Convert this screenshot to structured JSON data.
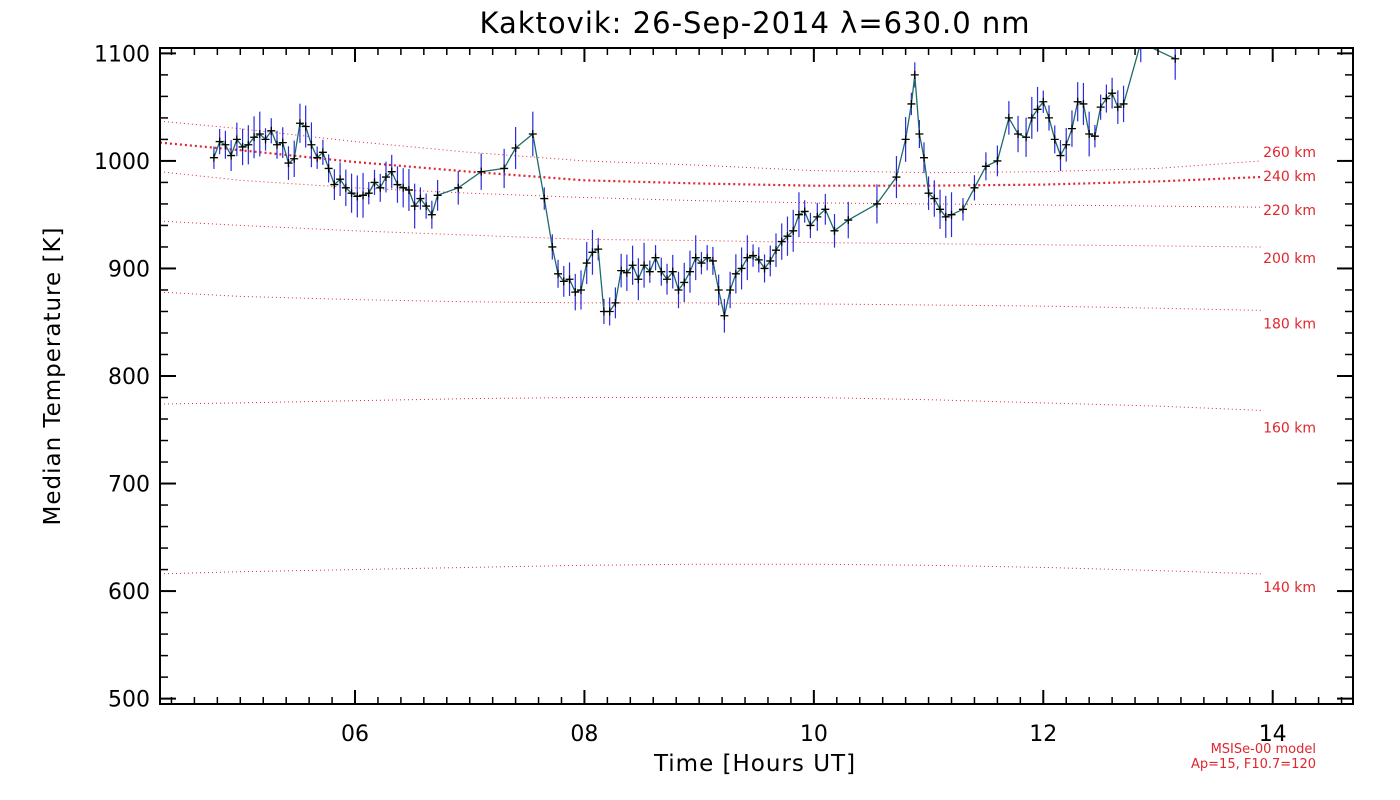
{
  "chart_data": {
    "type": "line",
    "title": "Kaktovik: 26-Sep-2014 λ=630.0 nm",
    "xlabel": "Time [Hours UT]",
    "ylabel": "Median Temperature [K]",
    "xlim": [
      4.3,
      14.7
    ],
    "ylim": [
      495,
      1105
    ],
    "xticks": [
      {
        "value": 6,
        "label": "06"
      },
      {
        "value": 8,
        "label": "08"
      },
      {
        "value": 10,
        "label": "10"
      },
      {
        "value": 12,
        "label": "12"
      },
      {
        "value": 14,
        "label": "14"
      }
    ],
    "yticks": [
      {
        "value": 500,
        "label": "500"
      },
      {
        "value": 600,
        "label": "600"
      },
      {
        "value": 700,
        "label": "700"
      },
      {
        "value": 800,
        "label": "800"
      },
      {
        "value": 900,
        "label": "900"
      },
      {
        "value": 1000,
        "label": "1000"
      },
      {
        "value": 1100,
        "label": "1100"
      }
    ],
    "model_note": [
      "MSISe-00 model",
      "Ap=15, F10.7=120"
    ],
    "colors": {
      "data_line": "#1f6b6b",
      "error_bars": "#2a2ae0",
      "model": "#e0262e",
      "markers": "#000000"
    },
    "series": [
      {
        "type": "line",
        "x": [
          4.77,
          4.82,
          4.87,
          4.92,
          4.97,
          5.02,
          5.07,
          5.12,
          5.17,
          5.22,
          5.27,
          5.32,
          5.37,
          5.42,
          5.47,
          5.52,
          5.57,
          5.62,
          5.67,
          5.72,
          5.77,
          5.82,
          5.87,
          5.92,
          5.97,
          6.02,
          6.07,
          6.12,
          6.17,
          6.22,
          6.27,
          6.32,
          6.37,
          6.42,
          6.47,
          6.52,
          6.57,
          6.62,
          6.67,
          6.72,
          6.9,
          7.1,
          7.3,
          7.4,
          7.55,
          7.65,
          7.72,
          7.77,
          7.82,
          7.87,
          7.92,
          7.97,
          8.02,
          8.07,
          8.12,
          8.17,
          8.22,
          8.27,
          8.32,
          8.37,
          8.42,
          8.47,
          8.52,
          8.57,
          8.62,
          8.67,
          8.72,
          8.77,
          8.82,
          8.87,
          8.92,
          8.97,
          9.02,
          9.07,
          9.12,
          9.17,
          9.22,
          9.27,
          9.32,
          9.37,
          9.42,
          9.47,
          9.52,
          9.57,
          9.62,
          9.67,
          9.72,
          9.77,
          9.82,
          9.87,
          9.92,
          9.97,
          10.03,
          10.1,
          10.18,
          10.3,
          10.55,
          10.72,
          10.8,
          10.85,
          10.88,
          10.92,
          10.96,
          11.0,
          11.05,
          11.1,
          11.15,
          11.2,
          11.3,
          11.4,
          11.5,
          11.6,
          11.7,
          11.78,
          11.85,
          11.9,
          11.95,
          12.0,
          12.05,
          12.1,
          12.15,
          12.2,
          12.25,
          12.3,
          12.35,
          12.4,
          12.45,
          12.5,
          12.55,
          12.6,
          12.65,
          12.7,
          12.85,
          13.15
        ],
        "y": [
          1003,
          1018,
          1015,
          1005,
          1020,
          1013,
          1015,
          1022,
          1025,
          1020,
          1028,
          1015,
          1017,
          998,
          1002,
          1035,
          1032,
          1015,
          1003,
          1008,
          993,
          978,
          983,
          975,
          970,
          967,
          968,
          970,
          980,
          975,
          985,
          990,
          978,
          975,
          973,
          958,
          965,
          958,
          950,
          968,
          975,
          990,
          993,
          1012,
          1025,
          965,
          920,
          895,
          888,
          890,
          878,
          880,
          905,
          915,
          918,
          860,
          860,
          868,
          898,
          896,
          903,
          890,
          903,
          897,
          910,
          897,
          890,
          897,
          880,
          887,
          897,
          910,
          905,
          910,
          907,
          880,
          856,
          880,
          895,
          900,
          910,
          912,
          908,
          900,
          907,
          917,
          925,
          930,
          935,
          950,
          953,
          940,
          948,
          955,
          935,
          945,
          960,
          985,
          1020,
          1053,
          1080,
          1025,
          1003,
          970,
          965,
          955,
          948,
          950,
          955,
          975,
          995,
          1000,
          1040,
          1025,
          1022,
          1040,
          1048,
          1055,
          1040,
          1020,
          1005,
          1015,
          1030,
          1055,
          1053,
          1025,
          1023,
          1050,
          1058,
          1063,
          1050,
          1053,
          1110,
          1095
        ]
      }
    ],
    "model_curves": [
      {
        "label": "260 km",
        "style": "dotted",
        "x": [
          4.3,
          5,
          6,
          7,
          8,
          9,
          10,
          11,
          12,
          13,
          13.9
        ],
        "y": [
          1037,
          1030,
          1018,
          1008,
          1000,
          996,
          991,
          989,
          990,
          993,
          1000
        ]
      },
      {
        "label": "240 km",
        "style": "dotted",
        "x": [
          4.3,
          5,
          6,
          7,
          8,
          9,
          10,
          11,
          12,
          13,
          13.9
        ],
        "y": [
          1017,
          1010,
          999,
          990,
          982,
          979,
          977,
          977,
          978,
          981,
          985
        ]
      },
      {
        "label": "220 km",
        "style": "dotted",
        "x": [
          4.3,
          5,
          6,
          7,
          8,
          9,
          10,
          11,
          12,
          13,
          13.9
        ],
        "y": [
          990,
          982,
          975,
          970,
          966,
          963,
          961,
          960,
          959,
          958,
          957
        ]
      },
      {
        "label": "200 km",
        "style": "dotted",
        "x": [
          4.3,
          5,
          6,
          7,
          8,
          9,
          10,
          11,
          12,
          13,
          13.9
        ],
        "y": [
          944,
          940,
          935,
          931,
          927,
          926,
          924,
          923,
          922,
          921,
          920
        ]
      },
      {
        "label": "180 km",
        "style": "dotted",
        "x": [
          4.3,
          5,
          6,
          7,
          8,
          9,
          10,
          11,
          12,
          13,
          13.9
        ],
        "y": [
          878,
          874,
          871,
          869,
          868,
          868,
          867,
          866,
          865,
          863,
          861
        ]
      },
      {
        "label": "160 km",
        "style": "dotted",
        "x": [
          4.3,
          5,
          6,
          7,
          8,
          9,
          10,
          11,
          12,
          13,
          13.9
        ],
        "y": [
          774,
          775,
          777,
          779,
          780,
          780,
          780,
          778,
          775,
          772,
          768
        ]
      },
      {
        "label": "140 km",
        "style": "dotted",
        "x": [
          4.3,
          5,
          6,
          7,
          8,
          9,
          10,
          11,
          12,
          13,
          13.9
        ],
        "y": [
          616,
          618,
          620,
          622,
          624,
          625,
          625,
          624,
          622,
          619,
          616
        ]
      }
    ]
  }
}
